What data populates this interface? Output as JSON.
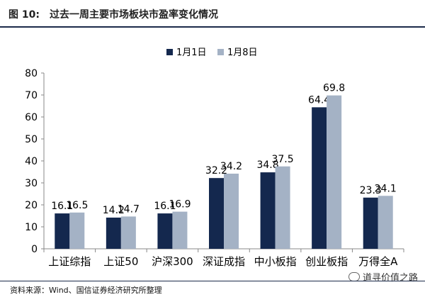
{
  "figure": {
    "label": "图  10:",
    "title": "过去一周主要市场板块市盈率变化情况",
    "source": "资料来源：Wind、国信证券经济研究所整理",
    "watermark": "道寻价值之路"
  },
  "chart_data": {
    "type": "bar",
    "categories": [
      "上证综指",
      "上证50",
      "沪深300",
      "深证成指",
      "中小板指",
      "创业板指",
      "万得全A"
    ],
    "series": [
      {
        "name": "1月1日",
        "values": [
          16.1,
          14.2,
          16.1,
          32.2,
          34.8,
          64.4,
          23.3
        ],
        "color": "#14284e"
      },
      {
        "name": "1月8日",
        "values": [
          16.5,
          14.7,
          16.9,
          34.2,
          37.5,
          69.8,
          24.1
        ],
        "color": "#a4b2c5"
      }
    ],
    "ylim": [
      0,
      80
    ],
    "yticks": [
      0,
      10,
      20,
      30,
      40,
      50,
      60,
      70,
      80
    ],
    "grid": false,
    "legend": "top-center",
    "data_labels": true
  }
}
